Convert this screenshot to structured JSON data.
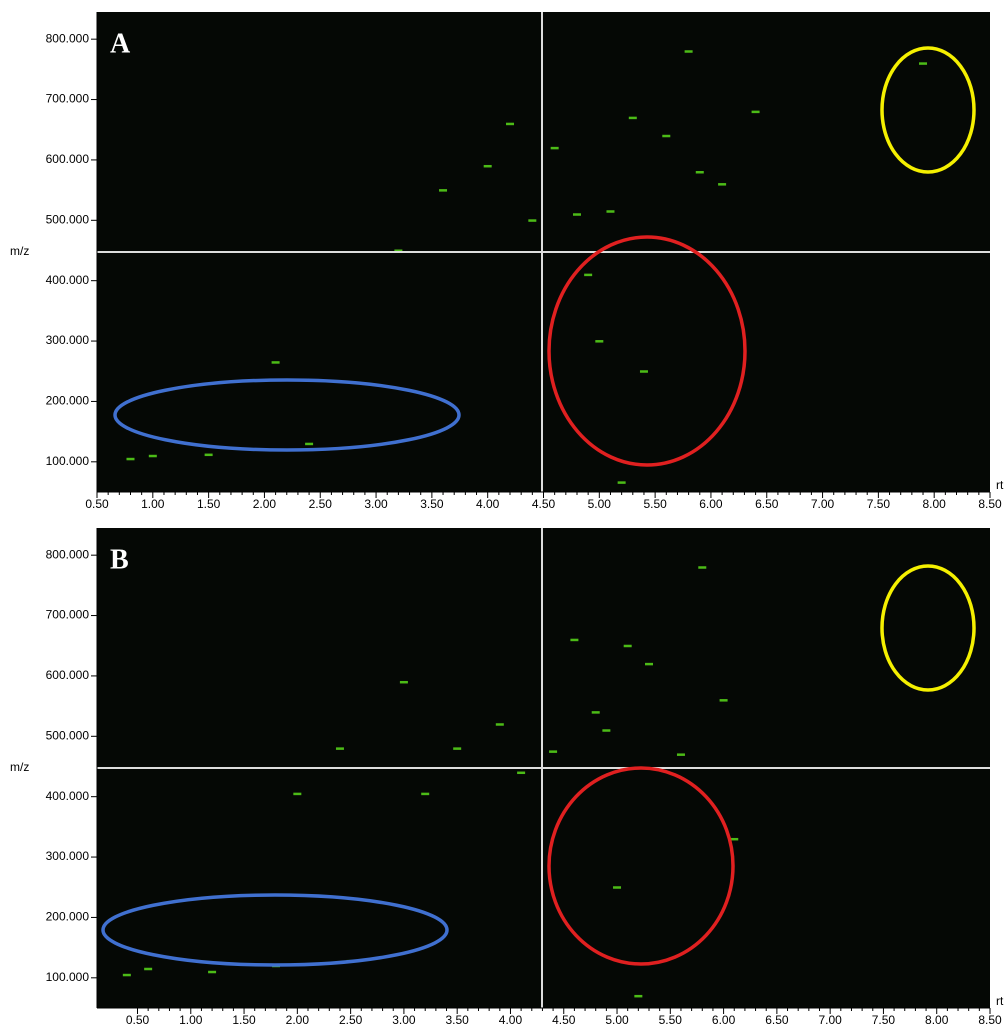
{
  "chart_data": [
    {
      "type": "scatter",
      "title": "A",
      "xlabel": "rt",
      "ylabel": "m/z",
      "xlim": [
        0.5,
        8.5
      ],
      "ylim": [
        50,
        845
      ],
      "xticks": [
        {
          "value": 0.5,
          "label": "0.50"
        },
        {
          "value": 1,
          "label": "1.00"
        },
        {
          "value": 1.5,
          "label": "1.50"
        },
        {
          "value": 2,
          "label": "2.00"
        },
        {
          "value": 2.5,
          "label": "2.50"
        },
        {
          "value": 3,
          "label": "3.00"
        },
        {
          "value": 3.5,
          "label": "3.50"
        },
        {
          "value": 4,
          "label": "4.00"
        },
        {
          "value": 4.5,
          "label": "4.50"
        },
        {
          "value": 5,
          "label": "5.00"
        },
        {
          "value": 5.5,
          "label": "5.50"
        },
        {
          "value": 6,
          "label": "6.00"
        },
        {
          "value": 6.5,
          "label": "6.50"
        },
        {
          "value": 7,
          "label": "7.00"
        },
        {
          "value": 7.5,
          "label": "7.50"
        },
        {
          "value": 8,
          "label": "8.00"
        },
        {
          "value": 8.5,
          "label": "8.50"
        }
      ],
      "yticks": [
        {
          "value": 100,
          "label": "100.000"
        },
        {
          "value": 200,
          "label": "200.000"
        },
        {
          "value": 300,
          "label": "300.000"
        },
        {
          "value": 400,
          "label": "400.000"
        },
        {
          "value": 500,
          "label": "500.000"
        },
        {
          "value": 600,
          "label": "600.000"
        },
        {
          "value": 700,
          "label": "700.000"
        },
        {
          "value": 800,
          "label": "800.000"
        }
      ],
      "series": [
        {
          "color": "#4cbb17",
          "x": [
            4.2,
            4.6,
            4.8,
            5.1,
            5.3,
            5.6,
            5.9,
            4.0,
            3.6,
            3.2,
            5.0,
            5.4,
            6.1,
            2.1,
            2.4,
            1.0,
            0.8,
            1.5,
            4.4,
            5.8,
            6.4,
            4.9,
            7.9,
            5.2
          ],
          "y": [
            660,
            620,
            510,
            515,
            670,
            640,
            580,
            590,
            550,
            450,
            300,
            250,
            560,
            265,
            130,
            110,
            105,
            112,
            500,
            780,
            680,
            410,
            760,
            66
          ]
        }
      ]
    },
    {
      "type": "scatter",
      "title": "B",
      "xlabel": "rt",
      "ylabel": "m/z",
      "xlim": [
        0.12,
        8.5
      ],
      "ylim": [
        50,
        845
      ],
      "xticks": [
        {
          "value": 0.5,
          "label": "0.50"
        },
        {
          "value": 1,
          "label": "1.00"
        },
        {
          "value": 1.5,
          "label": "1.50"
        },
        {
          "value": 2,
          "label": "2.00"
        },
        {
          "value": 2.5,
          "label": "2.50"
        },
        {
          "value": 3,
          "label": "3.00"
        },
        {
          "value": 3.5,
          "label": "3.50"
        },
        {
          "value": 4,
          "label": "4.00"
        },
        {
          "value": 4.5,
          "label": "4.50"
        },
        {
          "value": 5,
          "label": "5.00"
        },
        {
          "value": 5.5,
          "label": "5.50"
        },
        {
          "value": 6,
          "label": "6.00"
        },
        {
          "value": 6.5,
          "label": "6.50"
        },
        {
          "value": 7,
          "label": "7.00"
        },
        {
          "value": 7.5,
          "label": "7.50"
        },
        {
          "value": 8,
          "label": "8.00"
        },
        {
          "value": 8.5,
          "label": "8.50"
        }
      ],
      "yticks": [
        {
          "value": 100,
          "label": "100.000"
        },
        {
          "value": 200,
          "label": "200.000"
        },
        {
          "value": 300,
          "label": "300.000"
        },
        {
          "value": 400,
          "label": "400.000"
        },
        {
          "value": 500,
          "label": "500.000"
        },
        {
          "value": 600,
          "label": "600.000"
        },
        {
          "value": 700,
          "label": "700.000"
        },
        {
          "value": 800,
          "label": "800.000"
        }
      ],
      "series": [
        {
          "color": "#4cbb17",
          "x": [
            4.4,
            4.6,
            4.9,
            5.1,
            5.3,
            5.8,
            6.0,
            3.9,
            3.5,
            3.0,
            2.4,
            4.8,
            5.0,
            2.0,
            1.8,
            0.6,
            0.4,
            1.2,
            4.1,
            5.6,
            6.1,
            5.2,
            3.2,
            2.5
          ],
          "y": [
            475,
            660,
            510,
            650,
            620,
            780,
            560,
            520,
            480,
            590,
            480,
            540,
            250,
            405,
            120,
            115,
            105,
            110,
            440,
            470,
            330,
            70,
            405,
            128
          ]
        }
      ]
    }
  ]
}
